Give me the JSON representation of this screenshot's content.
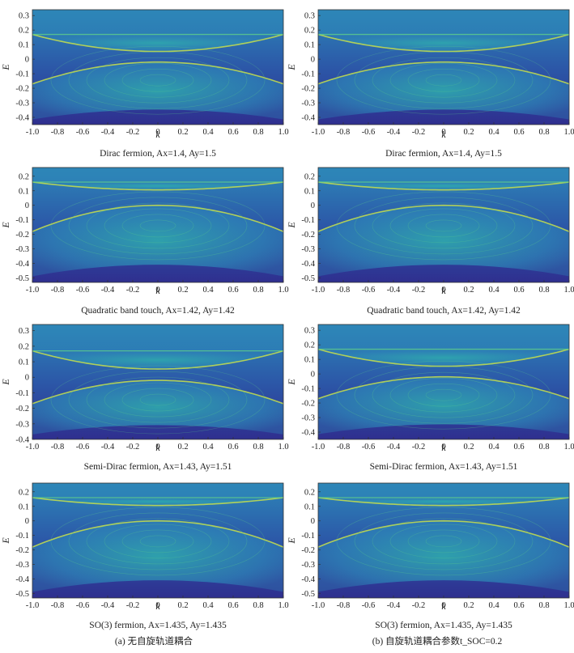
{
  "figure": {
    "captions": [
      "(a) 无自旋轨道耦合",
      "(b) 自旋轨道耦合参数t_SOC=0.2"
    ],
    "colormap": [
      "#2f2f8f",
      "#2c58a8",
      "#2d86b8",
      "#2fb3ae",
      "#5fd08a",
      "#c8e04a",
      "#f5e936"
    ]
  },
  "chart_data": [
    {
      "type": "heatmap",
      "row": 0,
      "col": 0,
      "title": "Dirac fermion, Ax=1.4, Ay=1.5",
      "xlabel": "k",
      "ylabel": "E",
      "xlim": [
        -1.0,
        1.0
      ],
      "ylim": [
        -0.45,
        0.34
      ],
      "xticks": [
        "-1.0",
        "-0.8",
        "-0.6",
        "-0.4",
        "-0.2",
        "0",
        "0.2",
        "0.4",
        "0.6",
        "0.8",
        "1.0"
      ],
      "yticks": [
        "-0.4",
        "-0.3",
        "-0.2",
        "-0.1",
        "0",
        "0.1",
        "0.2",
        "0.3"
      ],
      "ytick_values": [
        -0.4,
        -0.3,
        -0.2,
        -0.1,
        0,
        0.1,
        0.2,
        0.3
      ],
      "bands": {
        "top": 0.17,
        "bottom": -0.17,
        "upper_gap": 0.04,
        "lower_gap": -0.02,
        "floor": -0.45
      }
    },
    {
      "type": "heatmap",
      "row": 0,
      "col": 1,
      "title": "Dirac fermion, Ax=1.4, Ay=1.5",
      "xlabel": "k",
      "ylabel": "E",
      "xlim": [
        -1.0,
        1.0
      ],
      "ylim": [
        -0.45,
        0.34
      ],
      "xticks": [
        "-1.0",
        "-0.8",
        "-0.6",
        "-0.4",
        "-0.2",
        "0",
        "0.2",
        "0.4",
        "0.6",
        "0.8",
        "1.0"
      ],
      "yticks": [
        "-0.4",
        "-0.3",
        "-0.2",
        "-0.1",
        "0",
        "0.1",
        "0.2",
        "0.3"
      ],
      "ytick_values": [
        -0.4,
        -0.3,
        -0.2,
        -0.1,
        0,
        0.1,
        0.2,
        0.3
      ],
      "bands": {
        "top": 0.17,
        "bottom": -0.17,
        "upper_gap": 0.04,
        "lower_gap": -0.02,
        "floor": -0.45
      }
    },
    {
      "type": "heatmap",
      "row": 1,
      "col": 0,
      "title": "Quadratic band touch, Ax=1.42, Ay=1.42",
      "xlabel": "k",
      "ylabel": "E",
      "xlim": [
        -1.0,
        1.0
      ],
      "ylim": [
        -0.53,
        0.26
      ],
      "xticks": [
        "-1.0",
        "-0.8",
        "-0.6",
        "-0.4",
        "-0.2",
        "0",
        "0.2",
        "0.4",
        "0.6",
        "0.8",
        "1.0"
      ],
      "yticks": [
        "-0.5",
        "-0.4",
        "-0.3",
        "-0.2",
        "-0.1",
        "0",
        "0.1",
        "0.2"
      ],
      "ytick_values": [
        -0.5,
        -0.4,
        -0.3,
        -0.2,
        -0.1,
        0,
        0.1,
        0.2
      ],
      "bands": {
        "top": 0.16,
        "bottom": -0.18,
        "upper_gap": 0.1,
        "lower_gap": 0.0,
        "floor": -0.53
      }
    },
    {
      "type": "heatmap",
      "row": 1,
      "col": 1,
      "title": "Quadratic band touch, Ax=1.42, Ay=1.42",
      "xlabel": "k",
      "ylabel": "E",
      "xlim": [
        -1.0,
        1.0
      ],
      "ylim": [
        -0.53,
        0.26
      ],
      "xticks": [
        "-1.0",
        "-0.8",
        "-0.6",
        "-0.4",
        "-0.2",
        "0",
        "0.2",
        "0.4",
        "0.6",
        "0.8",
        "1.0"
      ],
      "yticks": [
        "-0.5",
        "-0.4",
        "-0.3",
        "-0.2",
        "-0.1",
        "0",
        "0.1",
        "0.2"
      ],
      "ytick_values": [
        -0.5,
        -0.4,
        -0.3,
        -0.2,
        -0.1,
        0,
        0.1,
        0.2
      ],
      "bands": {
        "top": 0.16,
        "bottom": -0.18,
        "upper_gap": 0.1,
        "lower_gap": 0.0,
        "floor": -0.53
      }
    },
    {
      "type": "heatmap",
      "row": 2,
      "col": 0,
      "title": "Semi-Dirac fermion, Ax=1.43, Ay=1.51",
      "xlabel": "k",
      "ylabel": "E",
      "xlim": [
        -1.0,
        1.0
      ],
      "ylim": [
        -0.4,
        0.34
      ],
      "xticks": [
        "-1.0",
        "-0.8",
        "-0.6",
        "-0.4",
        "-0.2",
        "0",
        "0.2",
        "0.4",
        "0.6",
        "0.8",
        "1.0"
      ],
      "yticks": [
        "-0.4",
        "-0.3",
        "-0.2",
        "-0.1",
        "0",
        "0.1",
        "0.2",
        "0.3"
      ],
      "ytick_values": [
        -0.4,
        -0.3,
        -0.2,
        -0.1,
        0,
        0.1,
        0.2,
        0.3
      ],
      "bands": {
        "top": 0.17,
        "bottom": -0.17,
        "upper_gap": 0.04,
        "lower_gap": -0.02,
        "floor": -0.4
      }
    },
    {
      "type": "heatmap",
      "row": 2,
      "col": 1,
      "title": "Semi-Dirac fermion, Ax=1.43, Ay=1.51",
      "xlabel": "k",
      "ylabel": "E",
      "xlim": [
        -1.0,
        1.0
      ],
      "ylim": [
        -0.45,
        0.34
      ],
      "xticks": [
        "-1.0",
        "-0.8",
        "-0.6",
        "-0.4",
        "-0.2",
        "0",
        "0.2",
        "0.4",
        "0.6",
        "0.8",
        "1.0"
      ],
      "yticks": [
        "-0.4",
        "-0.3",
        "-0.2",
        "-0.1",
        "0",
        "0.1",
        "0.2",
        "0.3"
      ],
      "ytick_values": [
        -0.4,
        -0.3,
        -0.2,
        -0.1,
        0,
        0.1,
        0.2,
        0.3
      ],
      "bands": {
        "top": 0.17,
        "bottom": -0.17,
        "upper_gap": 0.04,
        "lower_gap": -0.02,
        "floor": -0.45
      }
    },
    {
      "type": "heatmap",
      "row": 3,
      "col": 0,
      "title": "SO(3) fermion, Ax=1.435, Ay=1.435",
      "xlabel": "k",
      "ylabel": "E",
      "xlim": [
        -1.0,
        1.0
      ],
      "ylim": [
        -0.53,
        0.26
      ],
      "xticks": [
        "-1.0",
        "-0.8",
        "-0.6",
        "-0.4",
        "-0.2",
        "0",
        "0.2",
        "0.4",
        "0.6",
        "0.8",
        "1.0"
      ],
      "yticks": [
        "-0.5",
        "-0.4",
        "-0.3",
        "-0.2",
        "-0.1",
        "0",
        "0.1",
        "0.2"
      ],
      "ytick_values": [
        -0.5,
        -0.4,
        -0.3,
        -0.2,
        -0.1,
        0,
        0.1,
        0.2
      ],
      "bands": {
        "top": 0.16,
        "bottom": -0.18,
        "upper_gap": 0.1,
        "lower_gap": 0.0,
        "floor": -0.53
      }
    },
    {
      "type": "heatmap",
      "row": 3,
      "col": 1,
      "title": "SO(3) fermion, Ax=1.435, Ay=1.435",
      "xlabel": "k",
      "ylabel": "E",
      "xlim": [
        -1.0,
        1.0
      ],
      "ylim": [
        -0.53,
        0.26
      ],
      "xticks": [
        "-1.0",
        "-0.8",
        "-0.6",
        "-0.4",
        "-0.2",
        "0",
        "0.2",
        "0.4",
        "0.6",
        "0.8",
        "1.0"
      ],
      "yticks": [
        "-0.5",
        "-0.4",
        "-0.3",
        "-0.2",
        "-0.1",
        "0",
        "0.1",
        "0.2"
      ],
      "ytick_values": [
        -0.5,
        -0.4,
        -0.3,
        -0.2,
        -0.1,
        0,
        0.1,
        0.2
      ],
      "bands": {
        "top": 0.16,
        "bottom": -0.18,
        "upper_gap": 0.1,
        "lower_gap": 0.0,
        "floor": -0.53
      }
    }
  ]
}
